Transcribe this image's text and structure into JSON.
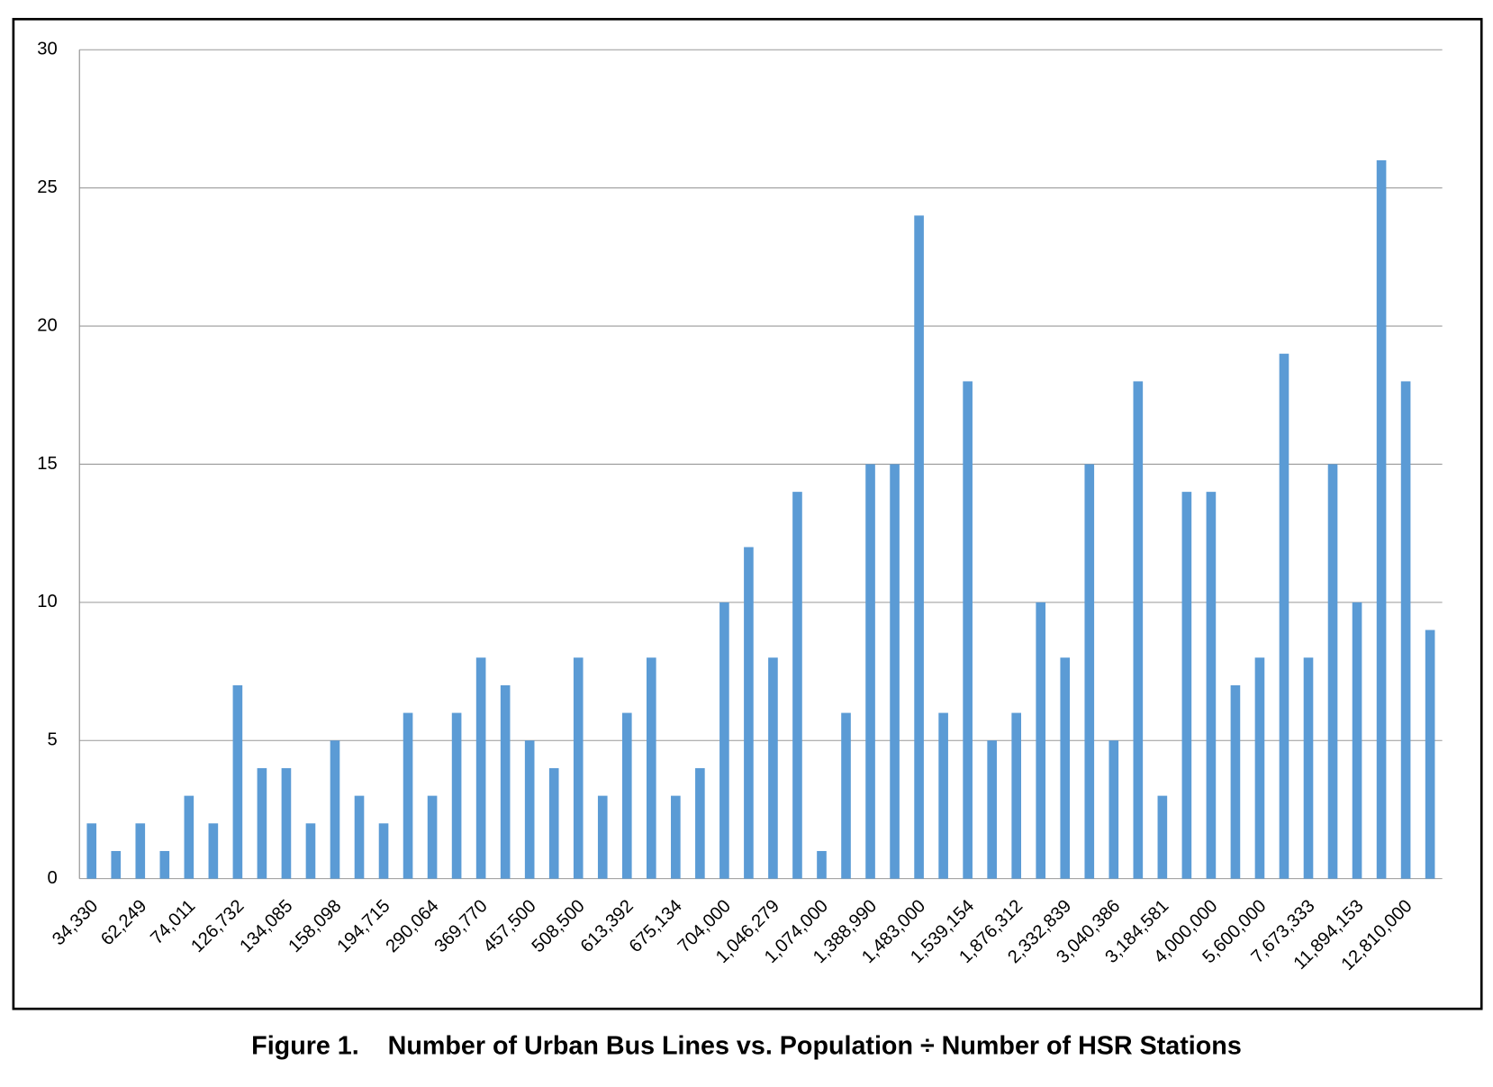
{
  "chart_data": {
    "type": "bar",
    "caption": "Figure 1.    Number of Urban Bus Lines vs. Population ÷ Number of HSR Stations",
    "categories": [
      "34,330",
      null,
      "62,249",
      null,
      "74,011",
      null,
      "126,732",
      null,
      "134,085",
      null,
      "158,098",
      null,
      "194,715",
      null,
      "290,064",
      null,
      "369,770",
      null,
      "457,500",
      null,
      "508,500",
      null,
      "613,392",
      null,
      "675,134",
      null,
      "704,000",
      null,
      "1,046,279",
      null,
      "1,074,000",
      null,
      "1,388,990",
      null,
      "1,483,000",
      null,
      "1,539,154",
      null,
      "1,876,312",
      null,
      "2,332,839",
      null,
      "3,040,386",
      null,
      "3,184,581",
      null,
      "4,000,000",
      null,
      "5,600,000",
      null,
      "7,673,333",
      null,
      "11,894,153",
      null,
      "12,810,000",
      null
    ],
    "values": [
      2,
      1,
      2,
      1,
      3,
      2,
      7,
      4,
      4,
      2,
      5,
      3,
      2,
      6,
      3,
      6,
      8,
      7,
      5,
      4,
      8,
      3,
      6,
      8,
      3,
      4,
      10,
      12,
      8,
      14,
      1,
      6,
      15,
      15,
      24,
      6,
      18,
      5,
      6,
      10,
      8,
      15,
      5,
      18,
      3,
      14,
      14,
      7,
      8,
      19,
      8,
      15,
      10,
      26,
      18,
      9
    ],
    "color": "#5b9bd5",
    "ylim": [
      0,
      30
    ],
    "yticks": [
      0,
      5,
      10,
      15,
      20,
      25,
      30
    ],
    "grid": true
  }
}
